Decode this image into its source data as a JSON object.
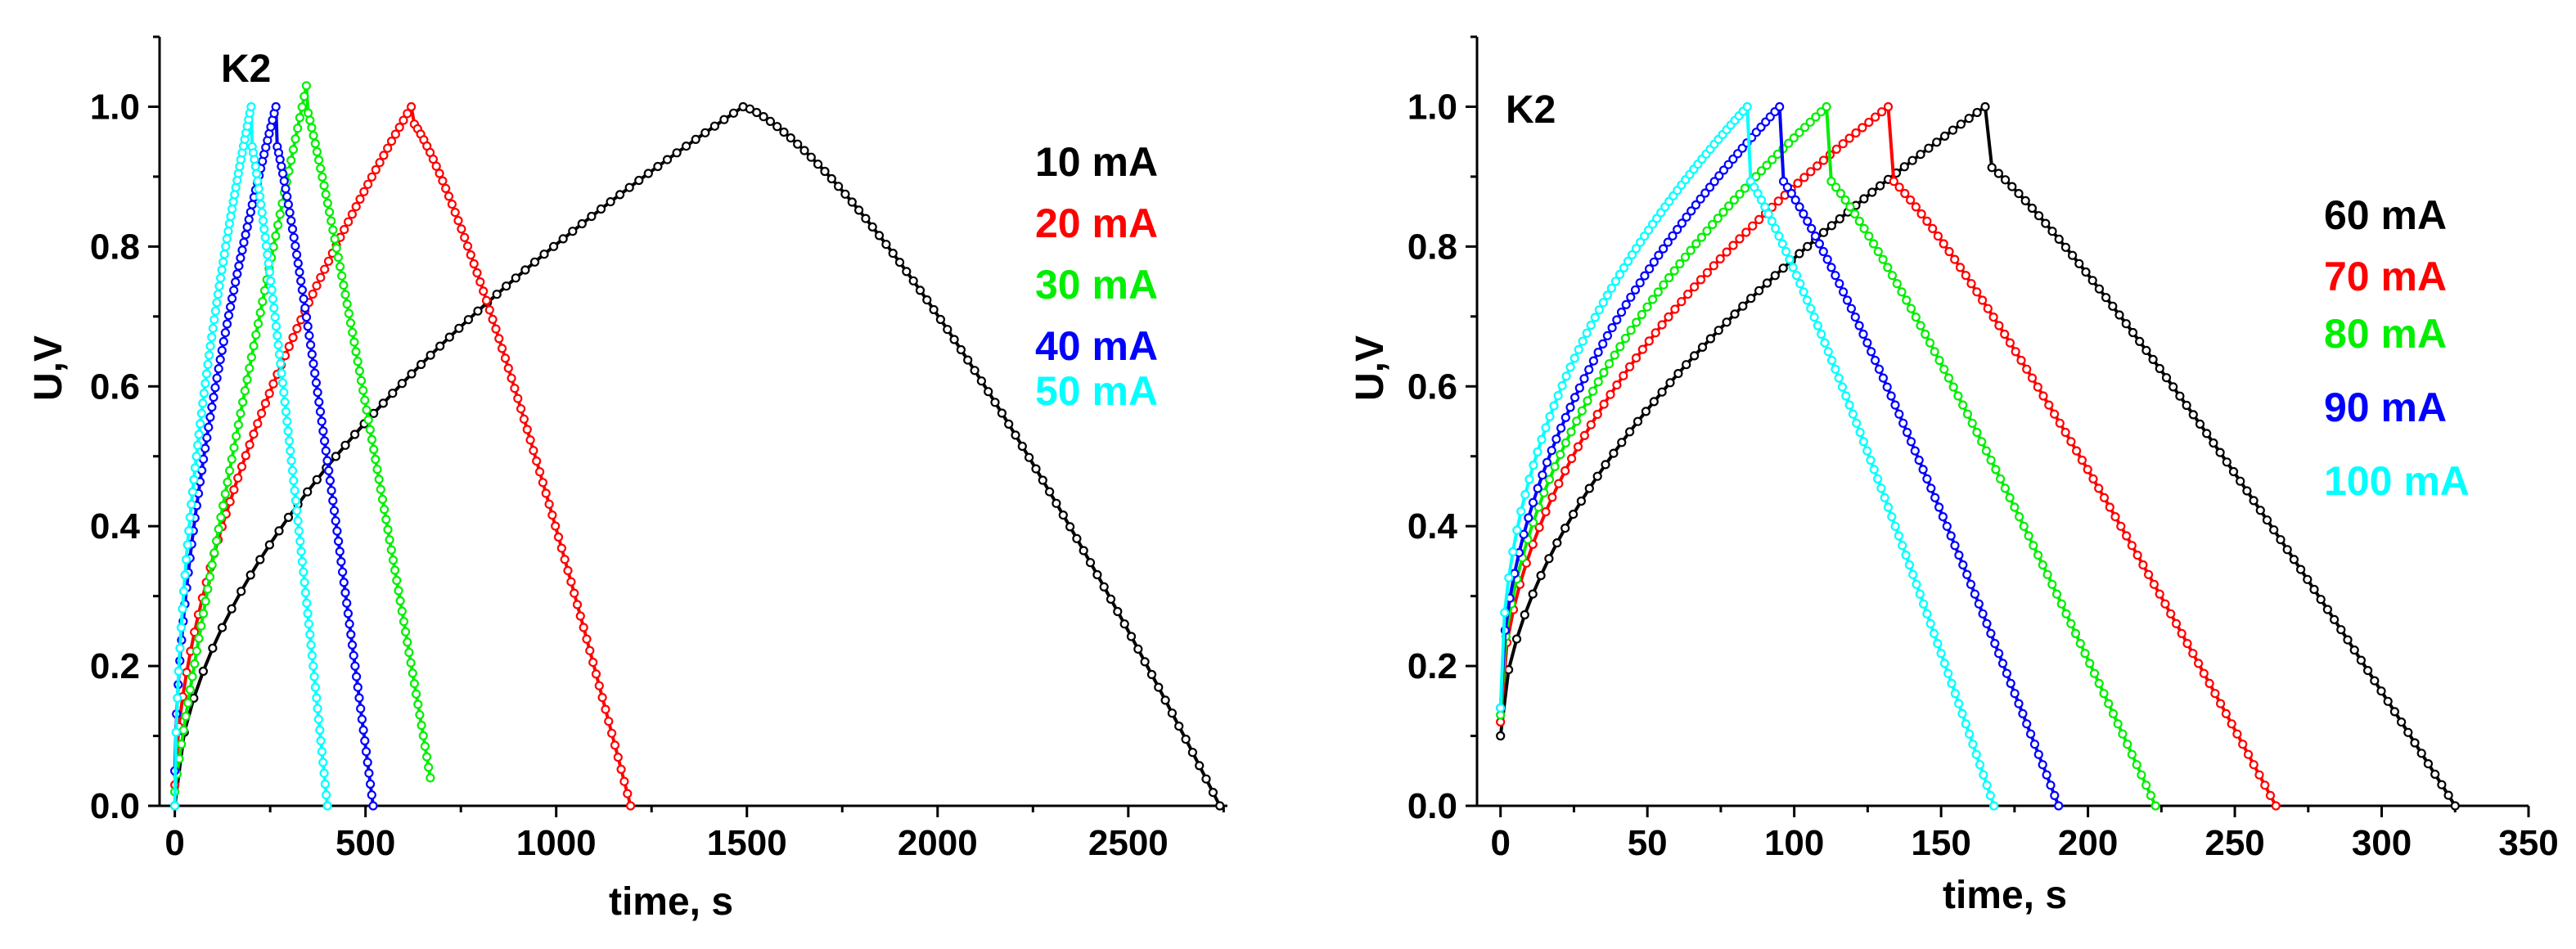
{
  "chart_data": [
    {
      "type": "line",
      "title": "",
      "annotation": "K2",
      "xlabel": "time, s",
      "ylabel": "U,V",
      "xlim": [
        -40,
        2760
      ],
      "ylim": [
        0,
        1.1
      ],
      "xticks": [
        "0",
        "500",
        "1000",
        "1500",
        "2000",
        "2500"
      ],
      "yticks": [
        "0.0",
        "0.2",
        "0.4",
        "0.6",
        "0.8",
        "1.0"
      ],
      "series": [
        {
          "name": "10 mA",
          "color": "#000000",
          "charge_end": 1490,
          "discharge_end": 2740,
          "drop": 0.0,
          "charge_shape": 0.55,
          "discharge_shape": 1.35,
          "start": 0.0
        },
        {
          "name": "20 mA",
          "color": "#ff0000",
          "charge_end": 620,
          "discharge_end": 1195,
          "drop": 0.02,
          "charge_shape": 0.6,
          "discharge_shape": 1.25,
          "start": 0.03
        },
        {
          "name": "30 mA",
          "color": "#00ee00",
          "charge_end": 345,
          "discharge_end": 670,
          "drop": 0.03,
          "charge_shape": 0.9,
          "discharge_shape": 1.1,
          "start": 0.02,
          "discharge_min": 0.04,
          "peak": 1.03
        },
        {
          "name": "40 mA",
          "color": "#0000ff",
          "charge_end": 265,
          "discharge_end": 520,
          "drop": 0.05,
          "charge_shape": 0.6,
          "discharge_shape": 1.15,
          "start": 0.05
        },
        {
          "name": "50 mA",
          "color": "#00ffff",
          "charge_end": 200,
          "discharge_end": 400,
          "drop": 0.05,
          "charge_shape": 0.55,
          "discharge_shape": 1.15,
          "start": 0.0
        }
      ]
    },
    {
      "type": "line",
      "title": "",
      "annotation": "K2",
      "xlabel": "time, s",
      "ylabel": "U,V",
      "xlim": [
        -8,
        350
      ],
      "ylim": [
        0,
        1.1
      ],
      "xticks": [
        "0",
        "50",
        "100",
        "150",
        "200",
        "250",
        "300",
        "350"
      ],
      "yticks": [
        "0.0",
        "0.2",
        "0.4",
        "0.6",
        "0.8",
        "1.0"
      ],
      "series": [
        {
          "name": "60 mA",
          "color": "#000000",
          "charge_end": 165,
          "discharge_end": 325,
          "drop": 0.08,
          "charge_shape": 0.55,
          "discharge_shape": 1.15,
          "start": 0.1
        },
        {
          "name": "70 mA",
          "color": "#ff0000",
          "charge_end": 132,
          "discharge_end": 264,
          "drop": 0.1,
          "charge_shape": 0.5,
          "discharge_shape": 1.15,
          "start": 0.12
        },
        {
          "name": "80 mA",
          "color": "#00ee00",
          "charge_end": 111,
          "discharge_end": 223,
          "drop": 0.1,
          "charge_shape": 0.5,
          "discharge_shape": 1.15,
          "start": 0.13
        },
        {
          "name": "90 mA",
          "color": "#0000ff",
          "charge_end": 95,
          "discharge_end": 190,
          "drop": 0.1,
          "charge_shape": 0.5,
          "discharge_shape": 1.15,
          "start": 0.14
        },
        {
          "name": "100 mA",
          "color": "#00ffff",
          "charge_end": 84,
          "discharge_end": 168,
          "drop": 0.1,
          "charge_shape": 0.45,
          "discharge_shape": 1.15,
          "start": 0.14
        }
      ]
    }
  ]
}
